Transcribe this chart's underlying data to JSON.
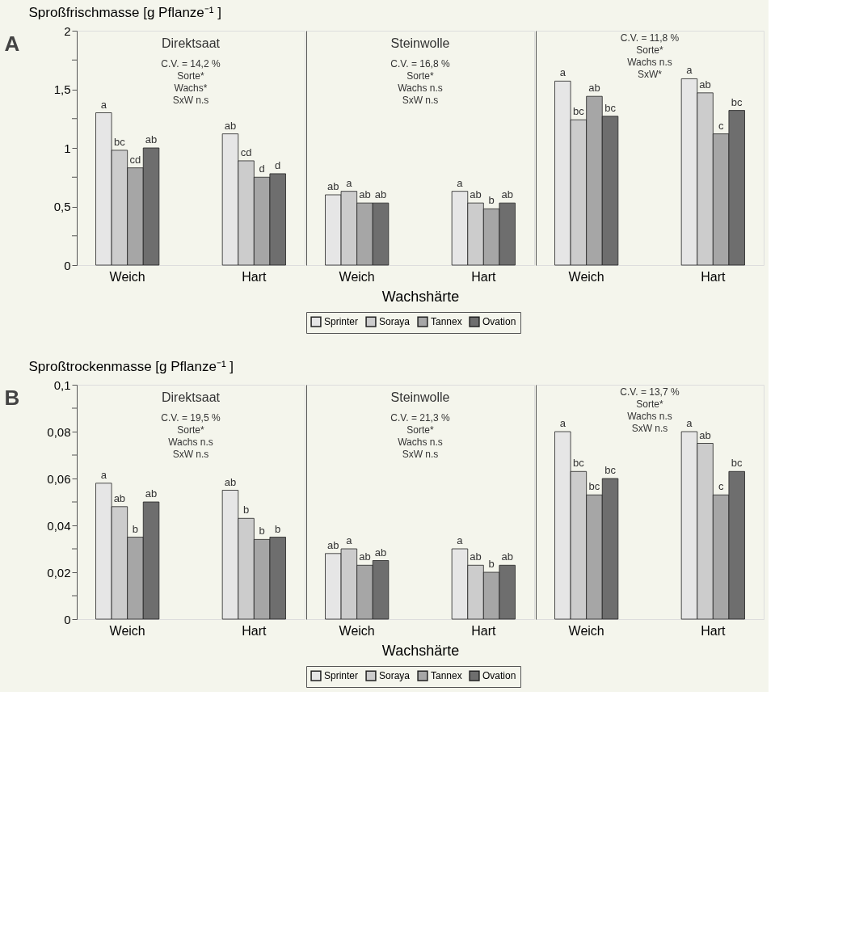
{
  "chart_data": [
    {
      "type": "bar",
      "title": "A",
      "subtitle": "Direktsaat",
      "ylabel": "Sproßfrischmasse [g Pflanze⁻¹ ]",
      "categories": [
        "Weich",
        "Hart"
      ],
      "ylim": [
        0,
        2
      ],
      "yticks": [
        0,
        {
          "value": 0.25,
          "label": null
        },
        {
          "value": 0.5,
          "label": "0,5"
        },
        {
          "value": 0.75,
          "label": null
        },
        1,
        {
          "value": 1.25,
          "label": null
        },
        {
          "value": 1.5,
          "label": "1,5"
        },
        {
          "value": 1.75,
          "label": null
        },
        2
      ],
      "grid": false,
      "legend": false,
      "annotations": [
        "C.V. = 14,2 %",
        "Sorte*",
        "Wachs*",
        "SxW n.s"
      ],
      "series": [
        {
          "color": "#e6e6e6",
          "values": [
            1.3,
            1.12
          ],
          "value_labels": [
            "a",
            "ab"
          ]
        },
        {
          "color": "#cccccc",
          "values": [
            0.98,
            0.89
          ],
          "value_labels": [
            "bc",
            "cd"
          ]
        },
        {
          "color": "#a6a6a6",
          "values": [
            0.83,
            0.75
          ],
          "value_labels": [
            "cd",
            "d"
          ]
        },
        {
          "color": "#6e6e6e",
          "values": [
            1.0,
            0.78
          ],
          "value_labels": [
            "ab",
            "d"
          ]
        }
      ]
    },
    {
      "type": "bar",
      "subtitle": "Steinwolle",
      "xlabel": "Wachshärte",
      "categories": [
        "Weich",
        "Hart"
      ],
      "ylim": [
        0,
        2
      ],
      "tick_labels": "x",
      "grid": false,
      "legend": "bottom",
      "annotations": [
        "C.V. = 16,8 %",
        "Sorte*",
        "Wachs n.s",
        "SxW n.s"
      ],
      "series": [
        {
          "name": "Sprinter",
          "color": "#e6e6e6",
          "values": [
            0.6,
            0.63
          ],
          "value_labels": [
            "ab",
            "a"
          ]
        },
        {
          "name": "Soraya",
          "color": "#cccccc",
          "values": [
            0.63,
            0.53
          ],
          "value_labels": [
            "a",
            "ab"
          ]
        },
        {
          "name": "Tannex",
          "color": "#a6a6a6",
          "values": [
            0.53,
            0.48
          ],
          "value_labels": [
            "ab",
            "b"
          ]
        },
        {
          "name": "Ovation",
          "color": "#6e6e6e",
          "values": [
            0.53,
            0.53
          ],
          "value_labels": [
            "ab",
            "ab"
          ]
        }
      ]
    },
    {
      "type": "bar",
      "categories": [
        "Weich",
        "Hart"
      ],
      "ylim": [
        0,
        2
      ],
      "tick_labels": "x",
      "grid": false,
      "legend": false,
      "annotations": [
        "C.V. = 11,8 %",
        "Sorte*",
        "Wachs n.s",
        "SxW*"
      ],
      "series": [
        {
          "color": "#e6e6e6",
          "values": [
            1.57,
            1.59
          ],
          "value_labels": [
            "a",
            "a"
          ]
        },
        {
          "color": "#cccccc",
          "values": [
            1.24,
            1.47
          ],
          "value_labels": [
            "bc",
            "ab"
          ]
        },
        {
          "color": "#a6a6a6",
          "values": [
            1.44,
            1.12
          ],
          "value_labels": [
            "ab",
            "c"
          ]
        },
        {
          "color": "#6e6e6e",
          "values": [
            1.27,
            1.32
          ],
          "value_labels": [
            "bc",
            "bc"
          ]
        }
      ]
    },
    {
      "type": "bar",
      "title": "B",
      "subtitle": "Direktsaat",
      "ylabel": "Sproßtrockenmasse [g Pflanze⁻¹ ]",
      "categories": [
        "Weich",
        "Hart"
      ],
      "ylim": [
        0,
        0.1
      ],
      "yticks": [
        0,
        {
          "value": 0.01,
          "label": null
        },
        {
          "value": 0.02,
          "label": "0,02"
        },
        {
          "value": 0.03,
          "label": null
        },
        {
          "value": 0.04,
          "label": "0,04"
        },
        {
          "value": 0.05,
          "label": null
        },
        {
          "value": 0.06,
          "label": "0,06"
        },
        {
          "value": 0.07,
          "label": null
        },
        {
          "value": 0.08,
          "label": "0,08"
        },
        {
          "value": 0.09,
          "label": null
        },
        {
          "value": 0.1,
          "label": "0,1"
        }
      ],
      "grid": false,
      "legend": false,
      "annotations": [
        "C.V. = 19,5 %",
        "Sorte*",
        "Wachs n.s",
        "SxW n.s"
      ],
      "series": [
        {
          "color": "#e6e6e6",
          "values": [
            0.058,
            0.055
          ],
          "value_labels": [
            "a",
            "ab"
          ]
        },
        {
          "color": "#cccccc",
          "values": [
            0.048,
            0.043
          ],
          "value_labels": [
            "ab",
            "b"
          ]
        },
        {
          "color": "#a6a6a6",
          "values": [
            0.035,
            0.034
          ],
          "value_labels": [
            "b",
            "b"
          ]
        },
        {
          "color": "#6e6e6e",
          "values": [
            0.05,
            0.035
          ],
          "value_labels": [
            "ab",
            "b"
          ]
        }
      ]
    },
    {
      "type": "bar",
      "subtitle": "Steinwolle",
      "xlabel": "Wachshärte",
      "categories": [
        "Weich",
        "Hart"
      ],
      "ylim": [
        0,
        0.1
      ],
      "tick_labels": "x",
      "grid": false,
      "legend": "bottom",
      "annotations": [
        "C.V. = 21,3 %",
        "Sorte*",
        "Wachs n.s",
        "SxW n.s"
      ],
      "series": [
        {
          "name": "Sprinter",
          "color": "#e6e6e6",
          "values": [
            0.028,
            0.03
          ],
          "value_labels": [
            "ab",
            "a"
          ]
        },
        {
          "name": "Soraya",
          "color": "#cccccc",
          "values": [
            0.03,
            0.023
          ],
          "value_labels": [
            "a",
            "ab"
          ]
        },
        {
          "name": "Tannex",
          "color": "#a6a6a6",
          "values": [
            0.023,
            0.02
          ],
          "value_labels": [
            "ab",
            "b"
          ]
        },
        {
          "name": "Ovation",
          "color": "#6e6e6e",
          "values": [
            0.025,
            0.023
          ],
          "value_labels": [
            "ab",
            "ab"
          ]
        }
      ]
    },
    {
      "type": "bar",
      "categories": [
        "Weich",
        "Hart"
      ],
      "ylim": [
        0,
        0.1
      ],
      "tick_labels": "x",
      "grid": false,
      "legend": false,
      "annotations": [
        "C.V. = 13,7 %",
        "Sorte*",
        "Wachs n.s",
        "SxW n.s"
      ],
      "series": [
        {
          "color": "#e6e6e6",
          "values": [
            0.08,
            0.08
          ],
          "value_labels": [
            "a",
            "a"
          ]
        },
        {
          "color": "#cccccc",
          "values": [
            0.063,
            0.075
          ],
          "value_labels": [
            "bc",
            "ab"
          ]
        },
        {
          "color": "#a6a6a6",
          "values": [
            0.053,
            0.053
          ],
          "value_labels": [
            "bc",
            "c"
          ]
        },
        {
          "color": "#6e6e6e",
          "values": [
            0.06,
            0.063
          ],
          "value_labels": [
            "bc",
            "bc"
          ]
        }
      ]
    }
  ]
}
